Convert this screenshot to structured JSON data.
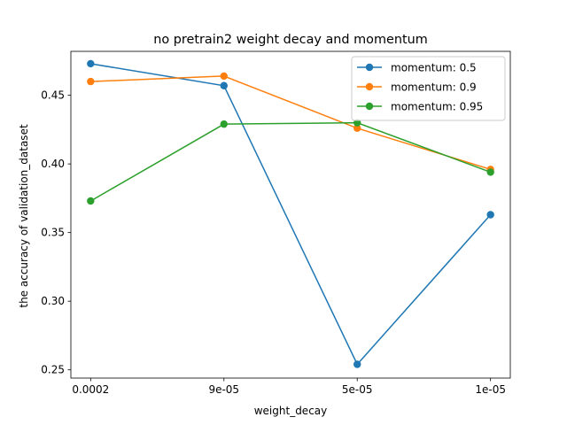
{
  "chart_data": {
    "type": "line",
    "title": "no pretrain2 weight decay and momentum",
    "xlabel": "weight_decay",
    "ylabel": "the accuracy of validation_dataset",
    "categories": [
      "0.0002",
      "9e-05",
      "5e-05",
      "1e-05"
    ],
    "ylim": [
      0.244,
      0.482
    ],
    "yticks": [
      0.25,
      0.3,
      0.35,
      0.4,
      0.45
    ],
    "ytick_labels": [
      "0.25",
      "0.30",
      "0.35",
      "0.40",
      "0.45"
    ],
    "grid": false,
    "legend_position": "top-right",
    "series": [
      {
        "name": "momentum: 0.5",
        "color": "#1f77b4",
        "values": [
          0.473,
          0.457,
          0.254,
          0.363
        ]
      },
      {
        "name": "momentum: 0.9",
        "color": "#ff7f0e",
        "values": [
          0.46,
          0.464,
          0.426,
          0.396
        ]
      },
      {
        "name": "momentum: 0.95",
        "color": "#2ca02c",
        "values": [
          0.373,
          0.429,
          0.43,
          0.394
        ]
      }
    ]
  }
}
